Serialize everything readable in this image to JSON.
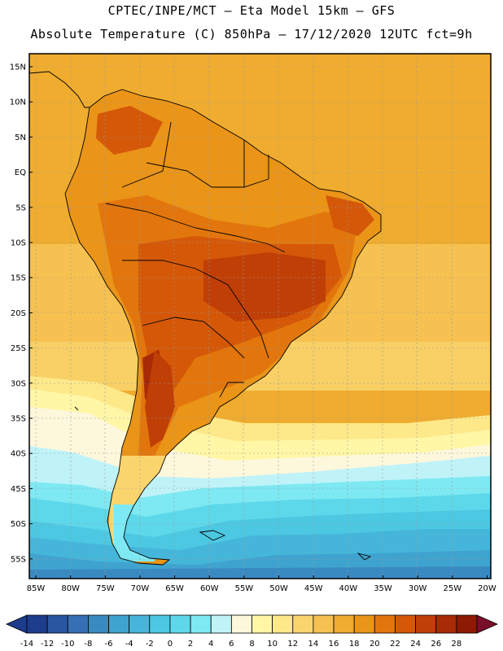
{
  "header": {
    "title_line1": "CPTEC/INPE/MCT –  Eta Model 15km – GFS",
    "title_line2": "Absolute Temperature (C) 850hPa – 17/12/2020 12UTC fct=9h"
  },
  "axes": {
    "lat_labels": [
      "15N",
      "10N",
      "5N",
      "EQ",
      "5S",
      "10S",
      "15S",
      "20S",
      "25S",
      "30S",
      "35S",
      "40S",
      "45S",
      "50S",
      "55S"
    ],
    "lon_labels": [
      "85W",
      "80W",
      "75W",
      "70W",
      "65W",
      "60W",
      "55W",
      "50W",
      "45W",
      "40W",
      "35W",
      "30W",
      "25W",
      "20W"
    ]
  },
  "colorbar": {
    "labels": [
      "-14",
      "-12",
      "-10",
      "-8",
      "-6",
      "-4",
      "-2",
      "0",
      "2",
      "4",
      "6",
      "8",
      "10",
      "12",
      "14",
      "16",
      "18",
      "20",
      "22",
      "24",
      "26",
      "28"
    ],
    "colors": [
      "#1e3c8c",
      "#2a55a0",
      "#3570b4",
      "#3a8ac2",
      "#3fa3cf",
      "#45b6da",
      "#4cc8e2",
      "#5dd8ea",
      "#7ee9f2",
      "#bff3f8",
      "#fdf7dc",
      "#fff7a6",
      "#fde98a",
      "#fad56e",
      "#f6c150",
      "#f0ac2e",
      "#ea9418",
      "#e2760c",
      "#d45808",
      "#bf3f06",
      "#a82a06",
      "#8c1a04"
    ]
  },
  "chart_data": {
    "type": "heatmap",
    "variable": "Absolute Temperature (C) 850hPa",
    "model": "Eta Model 15km – GFS",
    "date": "17/12/2020 12UTC",
    "forecast": "fct=9h",
    "lon_range": [
      -85,
      -20
    ],
    "lat_range": [
      -57,
      16
    ],
    "color_levels": [
      -14,
      -12,
      -10,
      -8,
      -6,
      -4,
      -2,
      0,
      2,
      4,
      6,
      8,
      10,
      12,
      14,
      16,
      18,
      20,
      22,
      24,
      26,
      28
    ]
  }
}
